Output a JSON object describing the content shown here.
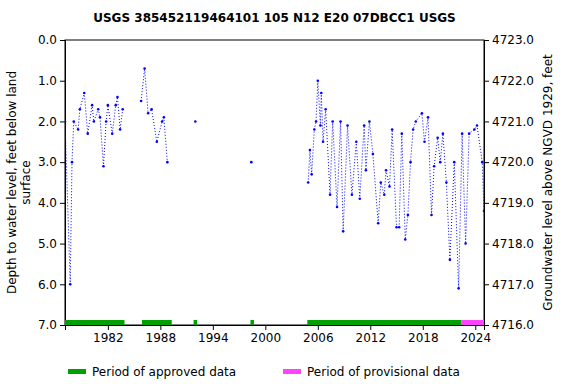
{
  "chart_data": {
    "type": "line",
    "title": "USGS 385452119464101 105  N12 E20 07DBCC1    USGS",
    "ylabel": [
      "Depth to water level, feet below land",
      "surface"
    ],
    "y2label": "Groundwater level above NGVD 1929, feet",
    "x": [
      1977.1,
      1977.7,
      1977.9,
      1978.1,
      1978.6,
      1978.8,
      1979.3,
      1979.7,
      1980.2,
      1980.4,
      1980.9,
      1981.1,
      1981.5,
      1981.8,
      1982.0,
      1982.5,
      1982.9,
      1983.1,
      1983.4,
      1983.7,
      1984.8,
      1985.8,
      1986.2,
      1986.6,
      1987.0,
      1987.6,
      1988.2,
      1988.4,
      1988.8,
      1990.0,
      1992.0,
      1995.0,
      1998.4,
      2001.0,
      2004.9,
      2005.1,
      2005.3,
      2005.6,
      2005.8,
      2006.0,
      2006.3,
      2006.4,
      2006.6,
      2006.9,
      2007.4,
      2007.7,
      2008.2,
      2008.6,
      2008.9,
      2009.4,
      2009.9,
      2010.4,
      2010.8,
      2011.3,
      2011.5,
      2011.9,
      2012.3,
      2012.9,
      2013.2,
      2013.6,
      2013.8,
      2014.2,
      2014.5,
      2015.0,
      2015.3,
      2015.6,
      2016.0,
      2016.3,
      2016.6,
      2016.9,
      2017.2,
      2017.9,
      2018.2,
      2018.6,
      2019.0,
      2019.3,
      2019.7,
      2020.0,
      2020.3,
      2020.7,
      2021.1,
      2021.6,
      2022.1,
      2022.5,
      2022.9,
      2023.3,
      2023.9,
      2024.2,
      2024.8,
      2025.0
    ],
    "series": [
      {
        "name": "Depth to water level",
        "color": "#0000ff",
        "marker": "dot",
        "line_style": "dotted",
        "values": [
          2.0,
          6.0,
          3.0,
          2.0,
          2.2,
          1.7,
          1.3,
          2.3,
          1.6,
          2.0,
          1.7,
          1.9,
          3.1,
          2.0,
          1.6,
          2.3,
          1.6,
          1.4,
          2.2,
          1.7,
          null,
          1.5,
          0.7,
          1.8,
          1.7,
          2.5,
          2.0,
          1.9,
          3.0,
          null,
          2.0,
          null,
          3.0,
          null,
          3.5,
          2.7,
          3.3,
          2.2,
          2.0,
          1.0,
          2.1,
          1.3,
          2.5,
          1.7,
          3.8,
          2.0,
          4.1,
          2.0,
          4.7,
          2.1,
          3.8,
          2.5,
          3.9,
          2.1,
          3.2,
          2.0,
          2.8,
          4.5,
          3.5,
          3.8,
          3.2,
          3.6,
          2.2,
          4.6,
          4.6,
          2.3,
          4.9,
          4.3,
          3.0,
          2.2,
          2.0,
          1.8,
          2.5,
          1.9,
          4.3,
          3.1,
          2.4,
          3.0,
          2.3,
          3.5,
          5.4,
          3.0,
          6.1,
          2.3,
          5.0,
          2.3,
          2.2,
          2.1,
          3.0,
          4.2
        ]
      }
    ],
    "xlim": [
      1977.1,
      2025.0
    ],
    "xticks": [
      1982,
      1988,
      1994,
      2000,
      2006,
      2012,
      2018,
      2024
    ],
    "ylim": [
      7,
      0
    ],
    "yticks": [
      {
        "value": 0,
        "label": "0.0"
      },
      {
        "value": 1,
        "label": "1.0"
      },
      {
        "value": 2,
        "label": "2.0"
      },
      {
        "value": 3,
        "label": "3.0"
      },
      {
        "value": 4,
        "label": "4.0"
      },
      {
        "value": 5,
        "label": "5.0"
      },
      {
        "value": 6,
        "label": "6.0"
      },
      {
        "value": 7,
        "label": "7.0"
      }
    ],
    "y2lim": [
      4716,
      4723
    ],
    "y2ticks": [
      {
        "value": 4716,
        "label": "4716.0"
      },
      {
        "value": 4717,
        "label": "4717.0"
      },
      {
        "value": 4718,
        "label": "4718.0"
      },
      {
        "value": 4719,
        "label": "4719.0"
      },
      {
        "value": 4720,
        "label": "4720.0"
      },
      {
        "value": 4721,
        "label": "4721.0"
      },
      {
        "value": 4722,
        "label": "4722.0"
      },
      {
        "value": 4723,
        "label": "4723.0"
      }
    ],
    "periods": [
      {
        "name": "Period of approved data",
        "color": "#00a000",
        "ranges": [
          [
            1977.1,
            1983.9
          ],
          [
            1985.9,
            1989.3
          ],
          [
            1991.8,
            1992.2
          ],
          [
            1998.3,
            1998.7
          ],
          [
            2004.8,
            2022.4
          ]
        ]
      },
      {
        "name": "Period of provisional data",
        "color": "#ff44ff",
        "ranges": [
          [
            2022.4,
            2025.0
          ]
        ]
      }
    ],
    "legend": "bottom"
  }
}
